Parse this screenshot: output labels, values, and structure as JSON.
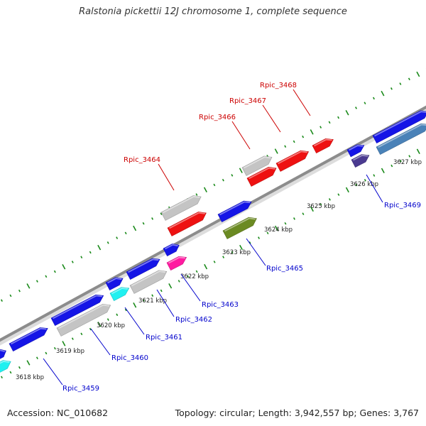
{
  "title": "Ralstonia pickettii 12J chromosome 1, complete sequence",
  "footer": {
    "accession": "Accession: NC_010682",
    "summary": "Topology: circular; Length: 3,942,557 bp; Genes: 3,767"
  },
  "colors": {
    "backbone": "#8c8c8c",
    "tick": "#1a8a1a",
    "top_label": "#cc0000",
    "bottom_label": "#0000cc",
    "gene_blue": "#1515e6",
    "gene_red": "#ee1111",
    "gene_grey": "#c4c4c4",
    "gene_cyan": "#20f0f0",
    "gene_olive": "#6b8a22",
    "gene_magenta": "#ff1aa0",
    "gene_navy": "#4a3a90",
    "gene_steel": "#4a82b8"
  },
  "scale_labels": [
    "3618 kbp",
    "3619 kbp",
    "3620 kbp",
    "3621 kbp",
    "3622 kbp",
    "3623 kbp",
    "3624 kbp",
    "3625 kbp",
    "3626 kbp",
    "3627 kbp"
  ],
  "top_genes": [
    "Rpic_3464",
    "Rpic_3466",
    "Rpic_3467",
    "Rpic_3468"
  ],
  "bottom_genes": [
    "Rpic_3459",
    "Rpic_3460",
    "Rpic_3461",
    "Rpic_3462",
    "Rpic_3463",
    "Rpic_3465",
    "Rpic_3469"
  ]
}
